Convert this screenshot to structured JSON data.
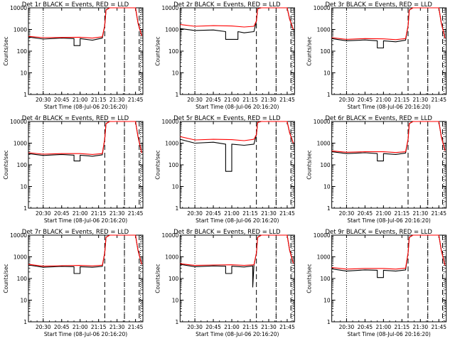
{
  "figure": {
    "background": "#ffffff",
    "events_color": "#000000",
    "lld_color": "#ff0000"
  },
  "chart_data": [
    {
      "type": "line",
      "title": "Det 1r BLACK = Events, RED = LLD",
      "xlabel": "Start Time (08-Jul-06 20:16:20)",
      "ylabel": "Counts/sec",
      "xlim": [
        "20:18",
        "21:51"
      ],
      "ylim": [
        1,
        10000
      ],
      "yscale": "log",
      "x_ticks": [
        "20:30",
        "20:45",
        "21:00",
        "21:15",
        "21:30",
        "21:45"
      ],
      "y_ticks": [
        "1",
        "10",
        "100",
        "1000",
        "10000"
      ],
      "dotted_lines": [
        "20:30",
        "21:36",
        "21:49"
      ],
      "dashed_lines": [
        "21:20",
        "21:36",
        "21:48"
      ],
      "series": [
        {
          "name": "BLACK = Events",
          "x": [
            "20:18",
            "20:30",
            "20:45",
            "20:55",
            "20:55",
            "21:00",
            "21:00",
            "21:10",
            "21:18",
            "21:20",
            "21:21",
            "21:24",
            "21:45",
            "21:47",
            "21:50"
          ],
          "y": [
            450,
            360,
            400,
            380,
            180,
            180,
            380,
            320,
            400,
            1500,
            8000,
            10000,
            10000,
            2000,
            500
          ]
        },
        {
          "name": "RED = LLD",
          "x": [
            "20:18",
            "20:30",
            "20:45",
            "21:00",
            "21:10",
            "21:18",
            "21:20",
            "21:21",
            "21:24",
            "21:45",
            "21:47",
            "21:50"
          ],
          "y": [
            480,
            420,
            430,
            440,
            400,
            460,
            1500,
            8000,
            10000,
            10000,
            2000,
            500
          ]
        }
      ]
    },
    {
      "type": "line",
      "title": "Det 2r BLACK = Events, RED = LLD",
      "xlabel": "Start Time (08-Jul-06 20:16:20)",
      "ylabel": "Counts/sec",
      "xlim": [
        "20:18",
        "21:51"
      ],
      "ylim": [
        1,
        10000
      ],
      "yscale": "log",
      "x_ticks": [
        "20:30",
        "20:45",
        "21:00",
        "21:15",
        "21:30",
        "21:45"
      ],
      "y_ticks": [
        "1",
        "10",
        "100",
        "1000",
        "10000"
      ],
      "dotted_lines": [
        "20:30",
        "21:36",
        "21:49"
      ],
      "dashed_lines": [
        "21:20",
        "21:36",
        "21:48"
      ],
      "series": [
        {
          "name": "BLACK = Events",
          "x": [
            "20:18",
            "20:30",
            "20:45",
            "20:55",
            "20:55",
            "21:05",
            "21:05",
            "21:10",
            "21:18",
            "21:20",
            "21:21",
            "21:24",
            "21:45",
            "21:47",
            "21:50"
          ],
          "y": [
            1100,
            900,
            950,
            800,
            350,
            350,
            800,
            700,
            800,
            2500,
            9000,
            10000,
            10000,
            3000,
            1000
          ]
        },
        {
          "name": "RED = LLD",
          "x": [
            "20:18",
            "20:30",
            "20:45",
            "21:00",
            "21:10",
            "21:18",
            "21:20",
            "21:21",
            "21:24",
            "21:45",
            "21:47",
            "21:50"
          ],
          "y": [
            1700,
            1400,
            1500,
            1450,
            1300,
            1400,
            2500,
            9000,
            10000,
            10000,
            3000,
            1000
          ]
        }
      ]
    },
    {
      "type": "line",
      "title": "Det 3r BLACK = Events, RED = LLD",
      "xlabel": "Start Time (08-Jul-06 20:16:20)",
      "ylabel": "Counts/sec",
      "xlim": [
        "20:18",
        "21:51"
      ],
      "ylim": [
        1,
        10000
      ],
      "yscale": "log",
      "x_ticks": [
        "20:30",
        "20:45",
        "21:00",
        "21:15",
        "21:30",
        "21:45"
      ],
      "y_ticks": [
        "1",
        "10",
        "100",
        "1000",
        "10000"
      ],
      "dotted_lines": [
        "20:30",
        "21:36",
        "21:49"
      ],
      "dashed_lines": [
        "21:20",
        "21:36",
        "21:48"
      ],
      "series": [
        {
          "name": "BLACK = Events",
          "x": [
            "20:18",
            "20:30",
            "20:45",
            "20:55",
            "20:55",
            "21:00",
            "21:00",
            "21:10",
            "21:18",
            "21:20",
            "21:21",
            "21:24",
            "21:45",
            "21:47",
            "21:50"
          ],
          "y": [
            380,
            300,
            330,
            300,
            140,
            140,
            300,
            270,
            320,
            1500,
            8000,
            10000,
            10000,
            2000,
            400
          ]
        },
        {
          "name": "RED = LLD",
          "x": [
            "20:18",
            "20:30",
            "20:45",
            "21:00",
            "21:10",
            "21:18",
            "21:20",
            "21:21",
            "21:24",
            "21:45",
            "21:47",
            "21:50"
          ],
          "y": [
            420,
            350,
            380,
            370,
            340,
            380,
            1500,
            8000,
            10000,
            10000,
            2000,
            400
          ]
        }
      ]
    },
    {
      "type": "line",
      "title": "Det 4r BLACK = Events, RED = LLD",
      "xlabel": "Start Time (08-Jul-06 20:16:20)",
      "ylabel": "Counts/sec",
      "xlim": [
        "20:18",
        "21:51"
      ],
      "ylim": [
        1,
        10000
      ],
      "yscale": "log",
      "x_ticks": [
        "20:30",
        "20:45",
        "21:00",
        "21:15",
        "21:30",
        "21:45"
      ],
      "y_ticks": [
        "1",
        "10",
        "100",
        "1000",
        "10000"
      ],
      "dotted_lines": [
        "20:30",
        "21:36",
        "21:49"
      ],
      "dashed_lines": [
        "21:20",
        "21:36",
        "21:48"
      ],
      "series": [
        {
          "name": "BLACK = Events",
          "x": [
            "20:18",
            "20:30",
            "20:45",
            "20:55",
            "20:55",
            "21:00",
            "21:00",
            "21:10",
            "21:18",
            "21:20",
            "21:21",
            "21:24",
            "21:45",
            "21:47",
            "21:50"
          ],
          "y": [
            330,
            270,
            300,
            280,
            150,
            150,
            280,
            250,
            290,
            1500,
            8000,
            10000,
            10000,
            2000,
            350
          ]
        },
        {
          "name": "RED = LLD",
          "x": [
            "20:18",
            "20:30",
            "20:45",
            "21:00",
            "21:10",
            "21:18",
            "21:20",
            "21:21",
            "21:24",
            "21:45",
            "21:47",
            "21:50"
          ],
          "y": [
            360,
            310,
            330,
            330,
            300,
            330,
            1500,
            8000,
            10000,
            10000,
            2000,
            350
          ]
        }
      ]
    },
    {
      "type": "line",
      "title": "Det 5r BLACK = Events, RED = LLD",
      "xlabel": "Start Time (08-Jul-06 20:16:20)",
      "ylabel": "Counts/sec",
      "xlim": [
        "20:18",
        "21:51"
      ],
      "ylim": [
        1,
        10000
      ],
      "yscale": "log",
      "x_ticks": [
        "20:30",
        "20:45",
        "21:00",
        "21:15",
        "21:30",
        "21:45"
      ],
      "y_ticks": [
        "1",
        "10",
        "100",
        "1000",
        "10000"
      ],
      "dotted_lines": [
        "20:30",
        "21:36",
        "21:49"
      ],
      "dashed_lines": [
        "21:20",
        "21:36",
        "21:48"
      ],
      "series": [
        {
          "name": "BLACK = Events",
          "x": [
            "20:18",
            "20:30",
            "20:45",
            "20:55",
            "20:55",
            "21:00",
            "21:00",
            "21:10",
            "21:18",
            "21:20",
            "21:21",
            "21:24",
            "21:45",
            "21:47",
            "21:50"
          ],
          "y": [
            1500,
            1000,
            1100,
            900,
            50,
            50,
            900,
            800,
            900,
            2500,
            9000,
            10000,
            10000,
            3000,
            1000
          ]
        },
        {
          "name": "RED = LLD",
          "x": [
            "20:18",
            "20:30",
            "20:45",
            "21:00",
            "21:10",
            "21:18",
            "21:20",
            "21:21",
            "21:24",
            "21:45",
            "21:47",
            "21:50"
          ],
          "y": [
            2000,
            1400,
            1500,
            1450,
            1300,
            1500,
            2500,
            9000,
            10000,
            10000,
            3000,
            1000
          ]
        }
      ]
    },
    {
      "type": "line",
      "title": "Det 6r BLACK = Events, RED = LLD",
      "xlabel": "Start Time (08-Jul-06 20:16:20)",
      "ylabel": "Counts/sec",
      "xlim": [
        "20:18",
        "21:51"
      ],
      "ylim": [
        1,
        10000
      ],
      "yscale": "log",
      "x_ticks": [
        "20:30",
        "20:45",
        "21:00",
        "21:15",
        "21:30",
        "21:45"
      ],
      "y_ticks": [
        "1",
        "10",
        "100",
        "1000",
        "10000"
      ],
      "dotted_lines": [
        "20:30",
        "21:36",
        "21:49"
      ],
      "dashed_lines": [
        "21:20",
        "21:36",
        "21:48"
      ],
      "series": [
        {
          "name": "BLACK = Events",
          "x": [
            "20:18",
            "20:30",
            "20:45",
            "20:55",
            "20:55",
            "21:00",
            "21:00",
            "21:10",
            "21:18",
            "21:20",
            "21:21",
            "21:24",
            "21:45",
            "21:47",
            "21:50"
          ],
          "y": [
            400,
            330,
            360,
            330,
            150,
            150,
            330,
            300,
            350,
            1500,
            8000,
            10000,
            10000,
            2000,
            450
          ]
        },
        {
          "name": "RED = LLD",
          "x": [
            "20:18",
            "20:30",
            "20:45",
            "21:00",
            "21:10",
            "21:18",
            "21:20",
            "21:21",
            "21:24",
            "21:45",
            "21:47",
            "21:50"
          ],
          "y": [
            440,
            380,
            400,
            400,
            370,
            400,
            1500,
            8000,
            10000,
            10000,
            2000,
            450
          ]
        }
      ]
    },
    {
      "type": "line",
      "title": "Det 7r BLACK = Events, RED = LLD",
      "xlabel": "Start Time (08-Jul-06 20:16:20)",
      "ylabel": "Counts/sec",
      "xlim": [
        "20:18",
        "21:51"
      ],
      "ylim": [
        1,
        10000
      ],
      "yscale": "log",
      "x_ticks": [
        "20:30",
        "20:45",
        "21:00",
        "21:15",
        "21:30",
        "21:45"
      ],
      "y_ticks": [
        "1",
        "10",
        "100",
        "1000",
        "10000"
      ],
      "dotted_lines": [
        "20:30",
        "21:36",
        "21:49"
      ],
      "dashed_lines": [
        "21:20",
        "21:36",
        "21:48"
      ],
      "series": [
        {
          "name": "BLACK = Events",
          "x": [
            "20:18",
            "20:30",
            "20:45",
            "20:55",
            "20:55",
            "21:00",
            "21:00",
            "21:10",
            "21:18",
            "21:20",
            "21:21",
            "21:24",
            "21:45",
            "21:47",
            "21:50"
          ],
          "y": [
            420,
            330,
            360,
            350,
            170,
            170,
            350,
            330,
            360,
            1500,
            8000,
            10000,
            10000,
            2000,
            450
          ]
        },
        {
          "name": "RED = LLD",
          "x": [
            "20:18",
            "20:30",
            "20:45",
            "21:00",
            "21:10",
            "21:18",
            "21:20",
            "21:21",
            "21:24",
            "21:45",
            "21:47",
            "21:50"
          ],
          "y": [
            450,
            370,
            390,
            400,
            380,
            410,
            1500,
            8000,
            10000,
            10000,
            2000,
            450
          ]
        }
      ]
    },
    {
      "type": "line",
      "title": "Det 8r BLACK = Events, RED = LLD",
      "xlabel": "Start Time (08-Jul-06 20:16:20)",
      "ylabel": "Counts/sec",
      "xlim": [
        "20:18",
        "21:51"
      ],
      "ylim": [
        1,
        10000
      ],
      "yscale": "log",
      "x_ticks": [
        "20:30",
        "20:45",
        "21:00",
        "21:15",
        "21:30",
        "21:45"
      ],
      "y_ticks": [
        "1",
        "10",
        "100",
        "1000",
        "10000"
      ],
      "dotted_lines": [
        "20:30",
        "21:36",
        "21:49"
      ],
      "dashed_lines": [
        "21:20",
        "21:36",
        "21:48"
      ],
      "series": [
        {
          "name": "BLACK = Events",
          "x": [
            "20:18",
            "20:30",
            "20:45",
            "20:55",
            "20:55",
            "21:00",
            "21:00",
            "21:10",
            "21:17",
            "21:17",
            "21:18",
            "21:20",
            "21:21",
            "21:24",
            "21:45",
            "21:47",
            "21:50"
          ],
          "y": [
            450,
            350,
            380,
            370,
            170,
            170,
            370,
            340,
            380,
            40,
            400,
            1500,
            8000,
            10000,
            10000,
            2000,
            500
          ]
        },
        {
          "name": "RED = LLD",
          "x": [
            "20:18",
            "20:30",
            "20:45",
            "21:00",
            "21:10",
            "21:18",
            "21:20",
            "21:21",
            "21:24",
            "21:45",
            "21:47",
            "21:50"
          ],
          "y": [
            480,
            400,
            420,
            430,
            400,
            430,
            1500,
            8000,
            10000,
            10000,
            2000,
            500
          ]
        }
      ]
    },
    {
      "type": "line",
      "title": "Det 9r BLACK = Events, RED = LLD",
      "xlabel": "Start Time (08-Jul-06 20:16:20)",
      "ylabel": "Counts/sec",
      "xlim": [
        "20:18",
        "21:51"
      ],
      "ylim": [
        1,
        10000
      ],
      "yscale": "log",
      "x_ticks": [
        "20:30",
        "20:45",
        "21:00",
        "21:15",
        "21:30",
        "21:45"
      ],
      "y_ticks": [
        "1",
        "10",
        "100",
        "1000",
        "10000"
      ],
      "dotted_lines": [
        "20:30",
        "21:36",
        "21:49"
      ],
      "dashed_lines": [
        "21:20",
        "21:36",
        "21:48"
      ],
      "series": [
        {
          "name": "BLACK = Events",
          "x": [
            "20:18",
            "20:30",
            "20:45",
            "20:55",
            "20:55",
            "21:00",
            "21:00",
            "21:10",
            "21:18",
            "21:20",
            "21:21",
            "21:24",
            "21:45",
            "21:47",
            "21:50"
          ],
          "y": [
            280,
            220,
            250,
            240,
            110,
            110,
            240,
            220,
            250,
            1500,
            8000,
            10000,
            10000,
            2000,
            400
          ]
        },
        {
          "name": "RED = LLD",
          "x": [
            "20:18",
            "20:30",
            "20:45",
            "21:00",
            "21:10",
            "21:18",
            "21:20",
            "21:21",
            "21:24",
            "21:45",
            "21:47",
            "21:50"
          ],
          "y": [
            320,
            270,
            290,
            290,
            270,
            300,
            1500,
            8000,
            10000,
            10000,
            2000,
            400
          ]
        }
      ]
    }
  ]
}
